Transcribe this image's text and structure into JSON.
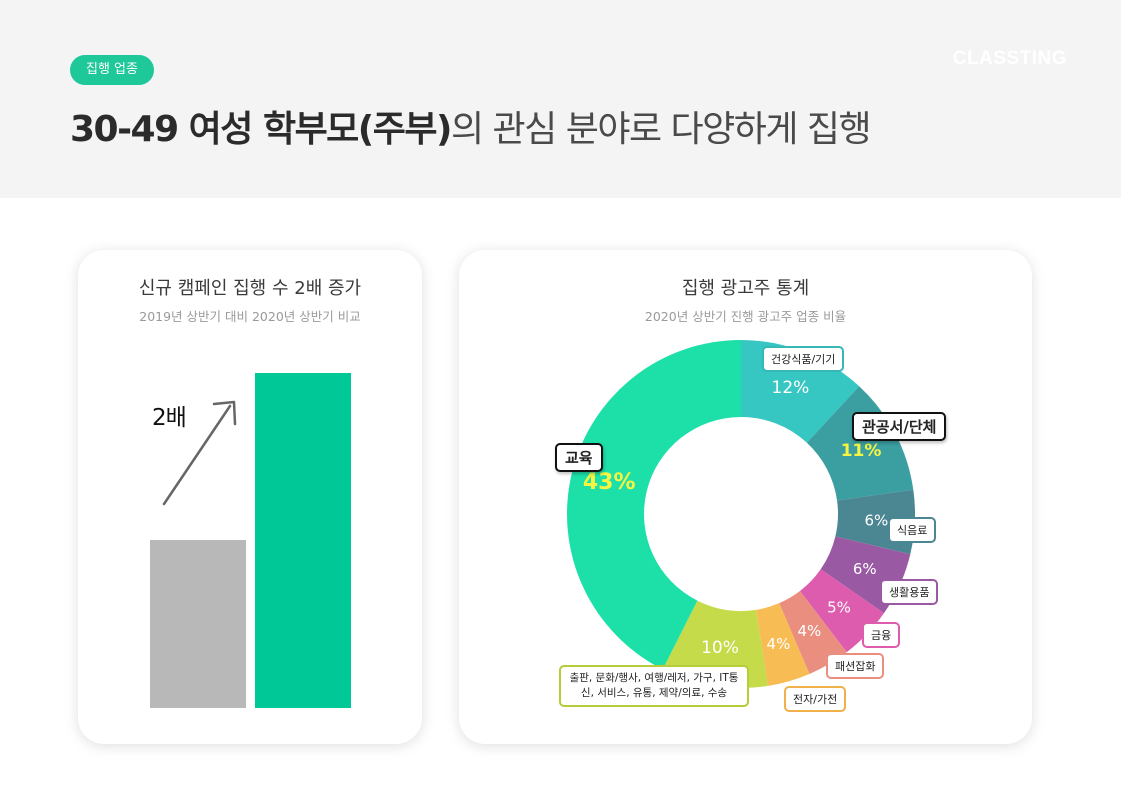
{
  "header": {
    "badge": "집행 업종",
    "brand": "CLASSTING",
    "headline_bold": "30-49 여성 학부모(주부)",
    "headline_rest": "의 관심 분야로 다양하게 집행"
  },
  "left_card": {
    "title": "신규 캠페인 집행 수 2배 증가",
    "subtitle": "2019년 상반기 대비 2020년 상반기 비교",
    "multiplier": "2배"
  },
  "right_card": {
    "title": "집행 광고주 통계",
    "subtitle": "2020년 상반기 진행 광고주 업종 비율"
  },
  "chart_data": [
    {
      "type": "bar",
      "categories": [
        "2019년 상반기",
        "2020년 상반기"
      ],
      "values": [
        1,
        2
      ],
      "colors": [
        "#b8b8b8",
        "#00c896"
      ],
      "annotation": "2배"
    },
    {
      "type": "pie",
      "title": "집행 광고주 통계",
      "subtitle": "2020년 상반기 진행 광고주 업종 비율",
      "slices": [
        {
          "label": "건강식품/기기",
          "value": 12,
          "text": "12%",
          "color": "#36c7c3",
          "pct_color": "#ffffff"
        },
        {
          "label": "관공서/단체",
          "value": 11,
          "text": "11%",
          "color": "#3b9ea1",
          "pct_color": "#f5f542"
        },
        {
          "label": "식음료",
          "value": 6,
          "text": "6%",
          "color": "#4b8792",
          "pct_color": "#ffffff"
        },
        {
          "label": "생활용품",
          "value": 6,
          "text": "6%",
          "color": "#9a5aa3",
          "pct_color": "#ffffff"
        },
        {
          "label": "금융",
          "value": 5,
          "text": "5%",
          "color": "#dd5cae",
          "pct_color": "#ffffff"
        },
        {
          "label": "패션잡화",
          "value": 4,
          "text": "4%",
          "color": "#ea8f80",
          "pct_color": "#ffffff"
        },
        {
          "label": "전자/가전",
          "value": 4,
          "text": "4%",
          "color": "#f8bc55",
          "pct_color": "#ffffff"
        },
        {
          "label": "출판, 문화/행사, 여행/레저, 가구, IT통신, 서비스, 유통, 제약/의료, 수송",
          "value": 10,
          "text": "10%",
          "color": "#c5db4a",
          "pct_color": "#ffffff"
        },
        {
          "label": "교육",
          "value": 43,
          "text": "43%",
          "color": "#1de0a8",
          "pct_color": "#f5f542"
        }
      ]
    }
  ]
}
